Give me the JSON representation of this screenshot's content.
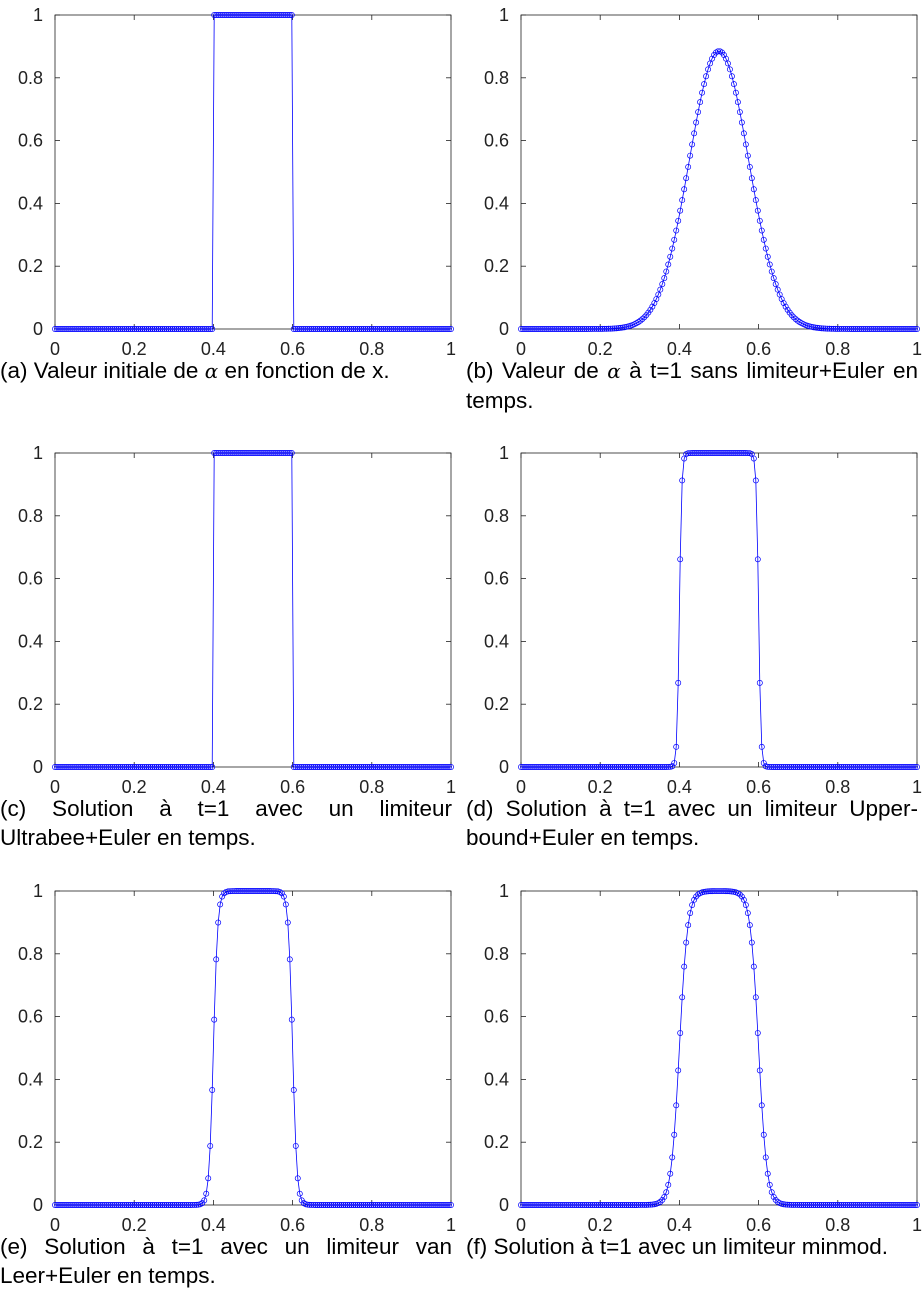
{
  "colors": {
    "series": "#0000ff",
    "axis": "#222222"
  },
  "panels": [
    {
      "caption_parts": [
        "(a) Valeur initiale de ",
        "α",
        " en fonction de x."
      ],
      "chart_data": {
        "type": "line",
        "marker": "circle",
        "xlim": [
          0,
          1
        ],
        "ylim": [
          0,
          1
        ],
        "xticks": [
          "0",
          "0.2",
          "0.4",
          "0.6",
          "0.8",
          "1"
        ],
        "yticks": [
          "0",
          "0.2",
          "0.4",
          "0.6",
          "0.8",
          "1"
        ],
        "profile": {
          "kind": "step",
          "a": 0.4,
          "b": 0.6
        },
        "n_points": 200
      }
    },
    {
      "caption_parts": [
        "(b) Valeur de ",
        "α",
        " à t=1 sans limiteur+Euler en temps."
      ],
      "chart_data": {
        "type": "line",
        "marker": "circle",
        "xlim": [
          0,
          1
        ],
        "ylim": [
          0,
          1
        ],
        "xticks": [
          "0",
          "0.2",
          "0.4",
          "0.6",
          "0.8",
          "1"
        ],
        "yticks": [
          "0",
          "0.2",
          "0.4",
          "0.6",
          "0.8",
          "1"
        ],
        "profile": {
          "kind": "smooth",
          "center": 0.5,
          "peak": 0.885,
          "sigma": 0.075
        },
        "n_points": 200
      }
    },
    {
      "caption_parts": [
        "(c) Solution à t=1 avec un limiteur Ultrabee+Euler en temps."
      ],
      "chart_data": {
        "type": "line",
        "marker": "circle",
        "xlim": [
          0,
          1
        ],
        "ylim": [
          0,
          1
        ],
        "xticks": [
          "0",
          "0.2",
          "0.4",
          "0.6",
          "0.8",
          "1"
        ],
        "yticks": [
          "0",
          "0.2",
          "0.4",
          "0.6",
          "0.8",
          "1"
        ],
        "profile": {
          "kind": "step",
          "a": 0.4,
          "b": 0.6
        },
        "n_points": 200
      }
    },
    {
      "caption_parts": [
        "(d) Solution à t=1 avec un limiteur Upper-bound+Euler en temps."
      ],
      "chart_data": {
        "type": "line",
        "marker": "circle",
        "xlim": [
          0,
          1
        ],
        "ylim": [
          0,
          1
        ],
        "xticks": [
          "0",
          "0.2",
          "0.4",
          "0.6",
          "0.8",
          "1"
        ],
        "yticks": [
          "0",
          "0.2",
          "0.4",
          "0.6",
          "0.8",
          "1"
        ],
        "profile": {
          "kind": "edge",
          "a": 0.4,
          "b": 0.6,
          "width": 0.003
        },
        "n_points": 200
      }
    },
    {
      "caption_parts": [
        "(e) Solution à t=1 avec un limiteur van Leer+Euler en temps."
      ],
      "chart_data": {
        "type": "line",
        "marker": "circle",
        "xlim": [
          0,
          1
        ],
        "ylim": [
          0,
          1
        ],
        "xticks": [
          "0",
          "0.2",
          "0.4",
          "0.6",
          "0.8",
          "1"
        ],
        "yticks": [
          "0",
          "0.2",
          "0.4",
          "0.6",
          "0.8",
          "1"
        ],
        "profile": {
          "kind": "edge",
          "a": 0.4,
          "b": 0.6,
          "width": 0.0055
        },
        "n_points": 200
      }
    },
    {
      "caption_parts": [
        "(f) Solution à t=1 avec un limiteur minmod."
      ],
      "chart_data": {
        "type": "line",
        "marker": "circle",
        "xlim": [
          0,
          1
        ],
        "ylim": [
          0,
          1
        ],
        "xticks": [
          "0",
          "0.2",
          "0.4",
          "0.6",
          "0.8",
          "1"
        ],
        "yticks": [
          "0",
          "0.2",
          "0.4",
          "0.6",
          "0.8",
          "1"
        ],
        "profile": {
          "kind": "edge",
          "a": 0.4,
          "b": 0.6,
          "width": 0.0105
        },
        "n_points": 200
      }
    }
  ]
}
